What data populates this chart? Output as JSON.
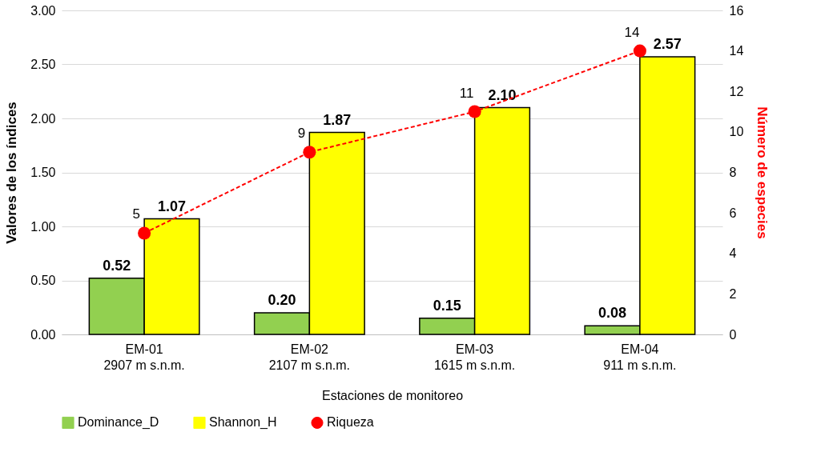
{
  "chart_data": {
    "type": "bar",
    "xlabel": "Estaciones de monitoreo",
    "ylabel": "Valores de los índices",
    "y2label": "Número de especies",
    "categories": [
      "EM-01\n2907 m s.n.m.",
      "EM-02\n2107 m s.n.m.",
      "EM-03\n1615 m s.n.m.",
      "EM-04\n911 m s.n.m."
    ],
    "series": [
      {
        "name": "Dominance_D",
        "color": "#92d050",
        "values": [
          0.52,
          0.2,
          0.15,
          0.08
        ],
        "value_labels": [
          "0.52",
          "0.20",
          "0.15",
          "0.08"
        ]
      },
      {
        "name": "Shannon_H",
        "color": "#ffff00",
        "values": [
          1.07,
          1.87,
          2.1,
          2.57
        ],
        "value_labels": [
          "1.07",
          "1.87",
          "2.10",
          "2.57"
        ]
      },
      {
        "name": "Riqueza",
        "type": "line",
        "axis": "y2",
        "color": "#ff0000",
        "values": [
          5,
          9,
          11,
          14
        ],
        "value_labels": [
          "5",
          "9",
          "11",
          "14"
        ],
        "marker": "circle",
        "line_style": "dashed"
      }
    ],
    "ylim": [
      0,
      3
    ],
    "yticks": [
      {
        "value": 0,
        "label": "0.00"
      },
      {
        "value": 0.5,
        "label": "0.50"
      },
      {
        "value": 1,
        "label": "1.00"
      },
      {
        "value": 1.5,
        "label": "1.50"
      },
      {
        "value": 2,
        "label": "2.00"
      },
      {
        "value": 2.5,
        "label": "2.50"
      },
      {
        "value": 3,
        "label": "3.00"
      }
    ],
    "y2lim": [
      0,
      16
    ],
    "y2ticks": [
      0,
      2,
      4,
      6,
      8,
      10,
      12,
      14,
      16
    ],
    "grid": "y",
    "legend": "bottom"
  }
}
